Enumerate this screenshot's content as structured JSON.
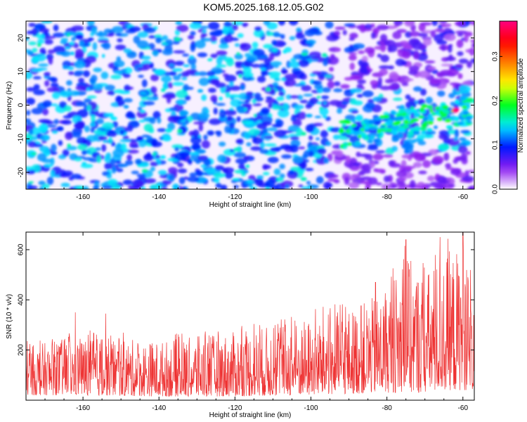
{
  "title": "KOM5.2025.168.12.05.G02",
  "chart_data": [
    {
      "type": "heatmap",
      "xlabel": "Height of straight line (km)",
      "ylabel": "Frequency (Hz)",
      "colorbar_label": "Normalized spectral amplitude",
      "xlim": [
        -175,
        -57
      ],
      "ylim": [
        -25,
        25
      ],
      "x_ticks": [
        -160,
        -140,
        -120,
        -100,
        -80,
        -60
      ],
      "y_ticks": [
        -20,
        -10,
        0,
        10,
        20
      ],
      "colorbar_range": [
        0,
        0.38
      ],
      "colorbar_ticks": [
        0.0,
        0.1,
        0.2,
        0.3
      ],
      "colormap": [
        "#ffffff",
        "#8c1cf0",
        "#0018ff",
        "#00e8ff",
        "#00ff20",
        "#ffff00",
        "#ff8000",
        "#ff0000",
        "#ff0080"
      ],
      "hotspots": [
        {
          "x": -62,
          "y": -1.5,
          "value": 0.37
        },
        {
          "x": -65,
          "y": -3,
          "value": 0.18
        },
        {
          "x": -60,
          "y": 2,
          "value": 0.13
        },
        {
          "x": -72,
          "y": -7,
          "value": 0.15
        },
        {
          "x": -76,
          "y": -7.5,
          "value": 0.14
        },
        {
          "x": -84,
          "y": -5,
          "value": 0.12
        },
        {
          "x": -88,
          "y": -7,
          "value": 0.1
        },
        {
          "x": -166,
          "y": -7,
          "value": 0.1
        },
        {
          "x": -145,
          "y": -10,
          "value": 0.09
        },
        {
          "x": -107,
          "y": 10,
          "value": 0.08
        }
      ]
    },
    {
      "type": "line",
      "xlabel": "Height of straight line (km)",
      "ylabel": "SNR (10 * v/v)",
      "xlim": [
        -175,
        -57
      ],
      "ylim": [
        0,
        670
      ],
      "x_ticks": [
        -160,
        -140,
        -120,
        -100,
        -80,
        -60
      ],
      "y_ticks": [
        200,
        400,
        600
      ],
      "series": [
        {
          "color": "#ee3333",
          "envelope": [
            {
              "x": -175,
              "min": 20,
              "max": 240
            },
            {
              "x": -160,
              "min": 20,
              "max": 280
            },
            {
              "x": -140,
              "min": 15,
              "max": 260
            },
            {
              "x": -120,
              "min": 15,
              "max": 300
            },
            {
              "x": -100,
              "min": 20,
              "max": 360
            },
            {
              "x": -90,
              "min": 25,
              "max": 400
            },
            {
              "x": -80,
              "min": 30,
              "max": 480
            },
            {
              "x": -75,
              "min": 30,
              "max": 640
            },
            {
              "x": -70,
              "min": 30,
              "max": 560
            },
            {
              "x": -65,
              "min": 40,
              "max": 650
            },
            {
              "x": -60,
              "min": 40,
              "max": 670
            },
            {
              "x": -57,
              "min": 40,
              "max": 450
            }
          ],
          "peaks": [
            {
              "x": -75,
              "y": 640
            },
            {
              "x": -66,
              "y": 650
            },
            {
              "x": -60,
              "y": 670
            },
            {
              "x": -83,
              "y": 470
            },
            {
              "x": -162,
              "y": 350
            },
            {
              "x": -154,
              "y": 345
            }
          ]
        }
      ]
    }
  ]
}
